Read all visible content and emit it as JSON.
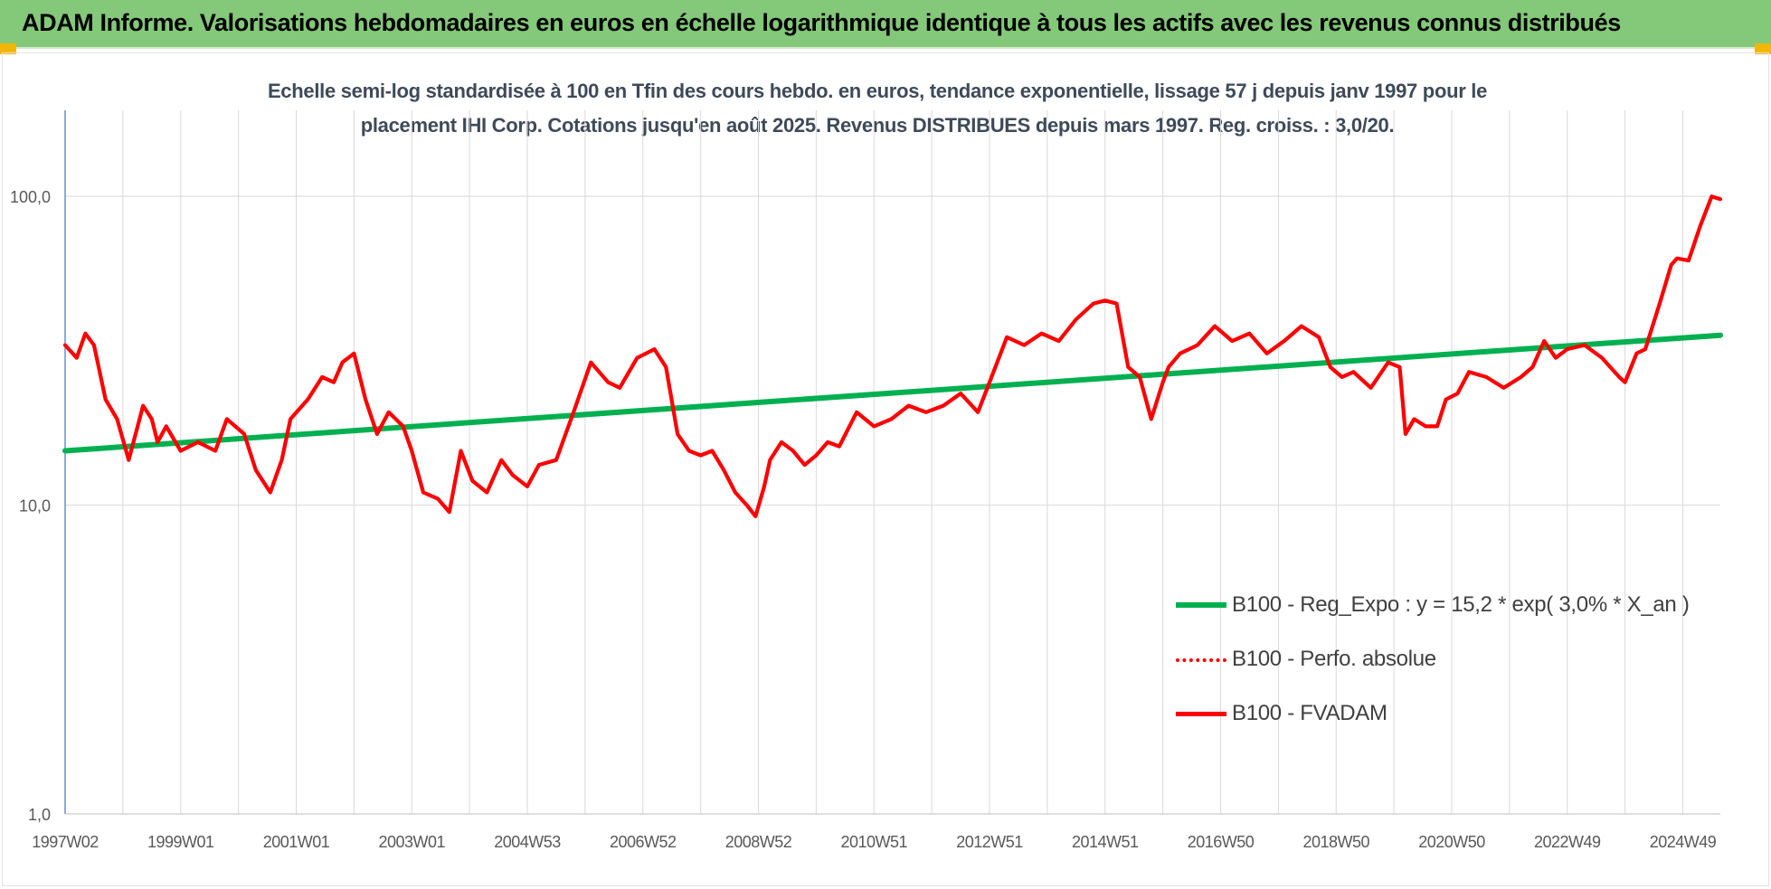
{
  "header": {
    "title": "ADAM Informe. Valorisations hebdomadaires en euros en échelle logarithmique identique à tous les actifs avec les revenus connus distribués"
  },
  "colors": {
    "banner": "#84c87a",
    "trend": "#00b050",
    "series": "#ff0000",
    "corner": "#f2b705"
  },
  "chart_data": {
    "type": "line",
    "title_line1": "Echelle semi-log standardisée à 100 en Tfin des cours hebdo. en euros, tendance exponentielle, lissage 57 j depuis janv 1997 pour le",
    "title_line2": "placement IHI Corp. Cotations jusqu'en août 2025. Revenus DISTRIBUES depuis mars 1997. Reg. croiss. : 3,0/20.",
    "y_scale": "log",
    "ylim": [
      1,
      190
    ],
    "y_ticks": [
      {
        "value": 1,
        "label": "1,0"
      },
      {
        "value": 10,
        "label": "10,0"
      },
      {
        "value": 100,
        "label": "100,0"
      }
    ],
    "xlim": [
      1997.0,
      2025.65
    ],
    "x_ticks": [
      {
        "x": 1997.0,
        "label": "1997W02"
      },
      {
        "x": 1999.0,
        "label": "1999W01"
      },
      {
        "x": 2001.0,
        "label": "2001W01"
      },
      {
        "x": 2003.0,
        "label": "2003W01"
      },
      {
        "x": 2005.0,
        "label": "2004W53"
      },
      {
        "x": 2007.0,
        "label": "2006W52"
      },
      {
        "x": 2009.0,
        "label": "2008W52"
      },
      {
        "x": 2011.0,
        "label": "2010W51"
      },
      {
        "x": 2013.0,
        "label": "2012W51"
      },
      {
        "x": 2015.0,
        "label": "2014W51"
      },
      {
        "x": 2017.0,
        "label": "2016W50"
      },
      {
        "x": 2019.0,
        "label": "2018W50"
      },
      {
        "x": 2021.0,
        "label": "2020W50"
      },
      {
        "x": 2023.0,
        "label": "2022W49"
      },
      {
        "x": 2025.0,
        "label": "2024W49"
      }
    ],
    "grid": true,
    "legend_position": "bottom-right",
    "series": [
      {
        "name": "B100 - Reg_Expo : y = 15,2 * exp( 3,0% *  X_an )",
        "style": "solid",
        "color": "#00b050",
        "x": [
          1997.0,
          2025.65
        ],
        "y": [
          15.0,
          35.5
        ]
      },
      {
        "name": "B100 - Perfo. absolue",
        "style": "dotted",
        "color": "#ff0000",
        "x": [],
        "y": []
      },
      {
        "name": "B100 - FVADAM",
        "style": "solid",
        "color": "#ff0000",
        "x": [
          1997.0,
          1997.2,
          1997.35,
          1997.5,
          1997.7,
          1997.9,
          1998.1,
          1998.35,
          1998.5,
          1998.6,
          1998.75,
          1999.0,
          1999.3,
          1999.6,
          1999.8,
          2000.1,
          2000.3,
          2000.55,
          2000.75,
          2000.9,
          2001.2,
          2001.45,
          2001.65,
          2001.8,
          2002.0,
          2002.2,
          2002.4,
          2002.6,
          2002.85,
          2003.0,
          2003.2,
          2003.45,
          2003.65,
          2003.85,
          2004.05,
          2004.3,
          2004.55,
          2004.75,
          2005.0,
          2005.2,
          2005.5,
          2005.8,
          2006.1,
          2006.4,
          2006.6,
          2006.9,
          2007.2,
          2007.4,
          2007.6,
          2007.8,
          2008.0,
          2008.2,
          2008.4,
          2008.6,
          2008.8,
          2008.95,
          2009.1,
          2009.2,
          2009.4,
          2009.6,
          2009.8,
          2010.0,
          2010.2,
          2010.4,
          2010.7,
          2011.0,
          2011.3,
          2011.6,
          2011.9,
          2012.2,
          2012.5,
          2012.8,
          2013.0,
          2013.3,
          2013.6,
          2013.9,
          2014.2,
          2014.5,
          2014.8,
          2015.0,
          2015.2,
          2015.4,
          2015.6,
          2015.8,
          2016.0,
          2016.1,
          2016.3,
          2016.6,
          2016.9,
          2017.2,
          2017.5,
          2017.8,
          2018.1,
          2018.4,
          2018.7,
          2018.9,
          2019.1,
          2019.3,
          2019.6,
          2019.9,
          2020.1,
          2020.2,
          2020.35,
          2020.55,
          2020.75,
          2020.9,
          2021.1,
          2021.3,
          2021.6,
          2021.9,
          2022.2,
          2022.4,
          2022.6,
          2022.8,
          2023.0,
          2023.3,
          2023.6,
          2023.9,
          2024.0,
          2024.2,
          2024.35,
          2024.6,
          2024.8,
          2024.9,
          2025.1,
          2025.3,
          2025.5,
          2025.65
        ],
        "y": [
          33,
          30,
          36,
          33,
          22,
          19,
          14,
          21,
          19,
          16,
          18,
          15,
          16,
          15,
          19,
          17,
          13,
          11,
          14,
          19,
          22,
          26,
          25,
          29,
          31,
          22,
          17,
          20,
          18,
          15,
          11,
          10.5,
          9.5,
          15,
          12,
          11,
          14,
          12.5,
          11.5,
          13.5,
          14,
          20,
          29,
          25,
          24,
          30,
          32,
          28,
          17,
          15,
          14.5,
          15,
          13,
          11,
          10,
          9.2,
          11.5,
          14,
          16,
          15,
          13.5,
          14.5,
          16,
          15.5,
          20,
          18,
          19,
          21,
          20,
          21,
          23,
          20,
          25,
          35,
          33,
          36,
          34,
          40,
          45,
          46,
          45,
          28,
          26,
          19,
          25,
          28,
          31,
          33,
          38,
          34,
          36,
          31,
          34,
          38,
          35,
          28,
          26,
          27,
          24,
          29,
          28,
          17,
          19,
          18,
          18,
          22,
          23,
          27,
          26,
          24,
          26,
          28,
          34,
          30,
          32,
          33,
          30,
          26,
          25,
          31,
          32,
          45,
          60,
          63,
          62,
          80,
          100,
          98
        ]
      }
    ]
  }
}
